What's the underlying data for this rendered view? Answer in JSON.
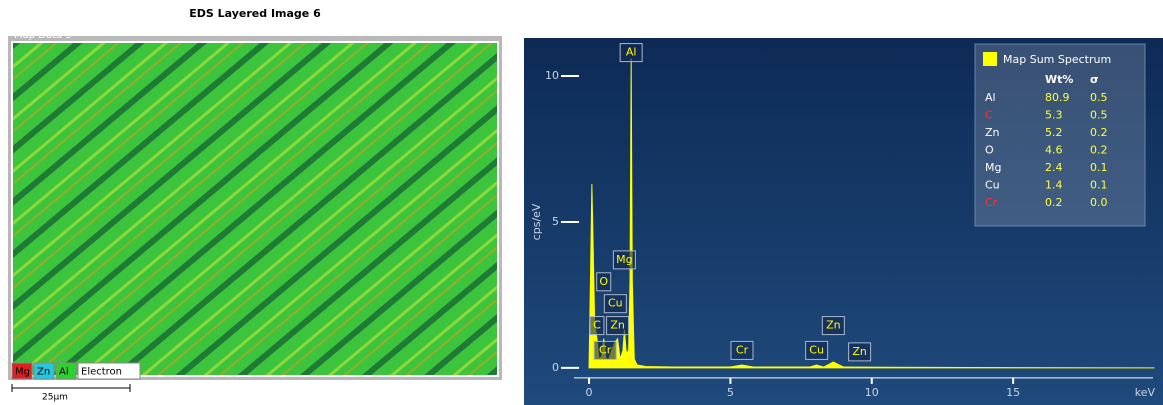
{
  "map_image": {
    "title": "EDS Layered Image 6",
    "label": "Map Data 5",
    "layers": [
      {
        "name": "Mg",
        "color": "#e02020"
      },
      {
        "name": "Zn",
        "color": "#20c8e0"
      },
      {
        "name": "Al",
        "color": "#30d030"
      },
      {
        "name": "Electron",
        "color": "#ffffff"
      }
    ],
    "scale_bar": "25µm"
  },
  "chart_data": {
    "type": "line",
    "area": true,
    "color": "#ffff00",
    "x_label": "keV",
    "y_label": "cps/eV",
    "x": [
      0,
      0.05,
      0.1,
      0.15,
      0.2,
      0.28,
      0.35,
      0.45,
      0.52,
      0.6,
      0.7,
      0.8,
      0.93,
      1.01,
      1.1,
      1.2,
      1.25,
      1.32,
      1.4,
      1.45,
      1.49,
      1.53,
      1.6,
      1.7,
      2.0,
      3.0,
      5.0,
      5.41,
      5.8,
      7.8,
      8.05,
      8.3,
      8.64,
      9.0,
      12,
      20
    ],
    "values": [
      0,
      3.0,
      6.3,
      4.0,
      1.5,
      1.0,
      0.3,
      0.4,
      1.0,
      0.3,
      0.3,
      0.6,
      0.9,
      1.0,
      0.3,
      0.6,
      1.3,
      0.5,
      0.6,
      3.0,
      10.6,
      3.0,
      0.3,
      0.1,
      0.05,
      0.03,
      0.03,
      0.1,
      0.03,
      0.03,
      0.1,
      0.03,
      0.2,
      0.03,
      0.02,
      0
    ],
    "xlim": [
      -2.3,
      20.3
    ],
    "ylim": [
      -1.27,
      11.3
    ],
    "xticks": [
      0,
      5,
      10,
      15
    ],
    "yticks": [
      0,
      5,
      10
    ],
    "peak_labels": [
      {
        "label": "Al",
        "x": 1.49,
        "y": 10.8
      },
      {
        "label": "Mg",
        "x": 1.25,
        "y": 3.7
      },
      {
        "label": "O",
        "x": 0.52,
        "y": 2.95
      },
      {
        "label": "Cu",
        "x": 0.93,
        "y": 2.2
      },
      {
        "label": "C",
        "x": 0.28,
        "y": 1.45
      },
      {
        "label": "Zn",
        "x": 1.01,
        "y": 1.45
      },
      {
        "label": "Cr",
        "x": 0.57,
        "y": 0.6
      },
      {
        "label": "Cr",
        "x": 5.41,
        "y": 0.6
      },
      {
        "label": "Cu",
        "x": 8.05,
        "y": 0.6
      },
      {
        "label": "Zn",
        "x": 8.64,
        "y": 1.45
      },
      {
        "label": "Zn",
        "x": 9.57,
        "y": 0.55
      }
    ],
    "legend": {
      "title": "Map Sum Spectrum",
      "columns": [
        "Wt%",
        "σ"
      ],
      "rows": [
        {
          "element": "Al",
          "color": "#ffffff",
          "cells": [
            "80.9",
            "0.5"
          ]
        },
        {
          "element": "C",
          "color": "#ff3030",
          "cells": [
            "5.3",
            "0.5"
          ]
        },
        {
          "element": "Zn",
          "color": "#ffffff",
          "cells": [
            "5.2",
            "0.2"
          ]
        },
        {
          "element": "O",
          "color": "#ffffff",
          "cells": [
            "4.6",
            "0.2"
          ]
        },
        {
          "element": "Mg",
          "color": "#ffffff",
          "cells": [
            "2.4",
            "0.1"
          ]
        },
        {
          "element": "Cu",
          "color": "#ffffff",
          "cells": [
            "1.4",
            "0.1"
          ]
        },
        {
          "element": "Cr",
          "color": "#ff3030",
          "cells": [
            "0.2",
            "0.0"
          ]
        }
      ]
    }
  }
}
